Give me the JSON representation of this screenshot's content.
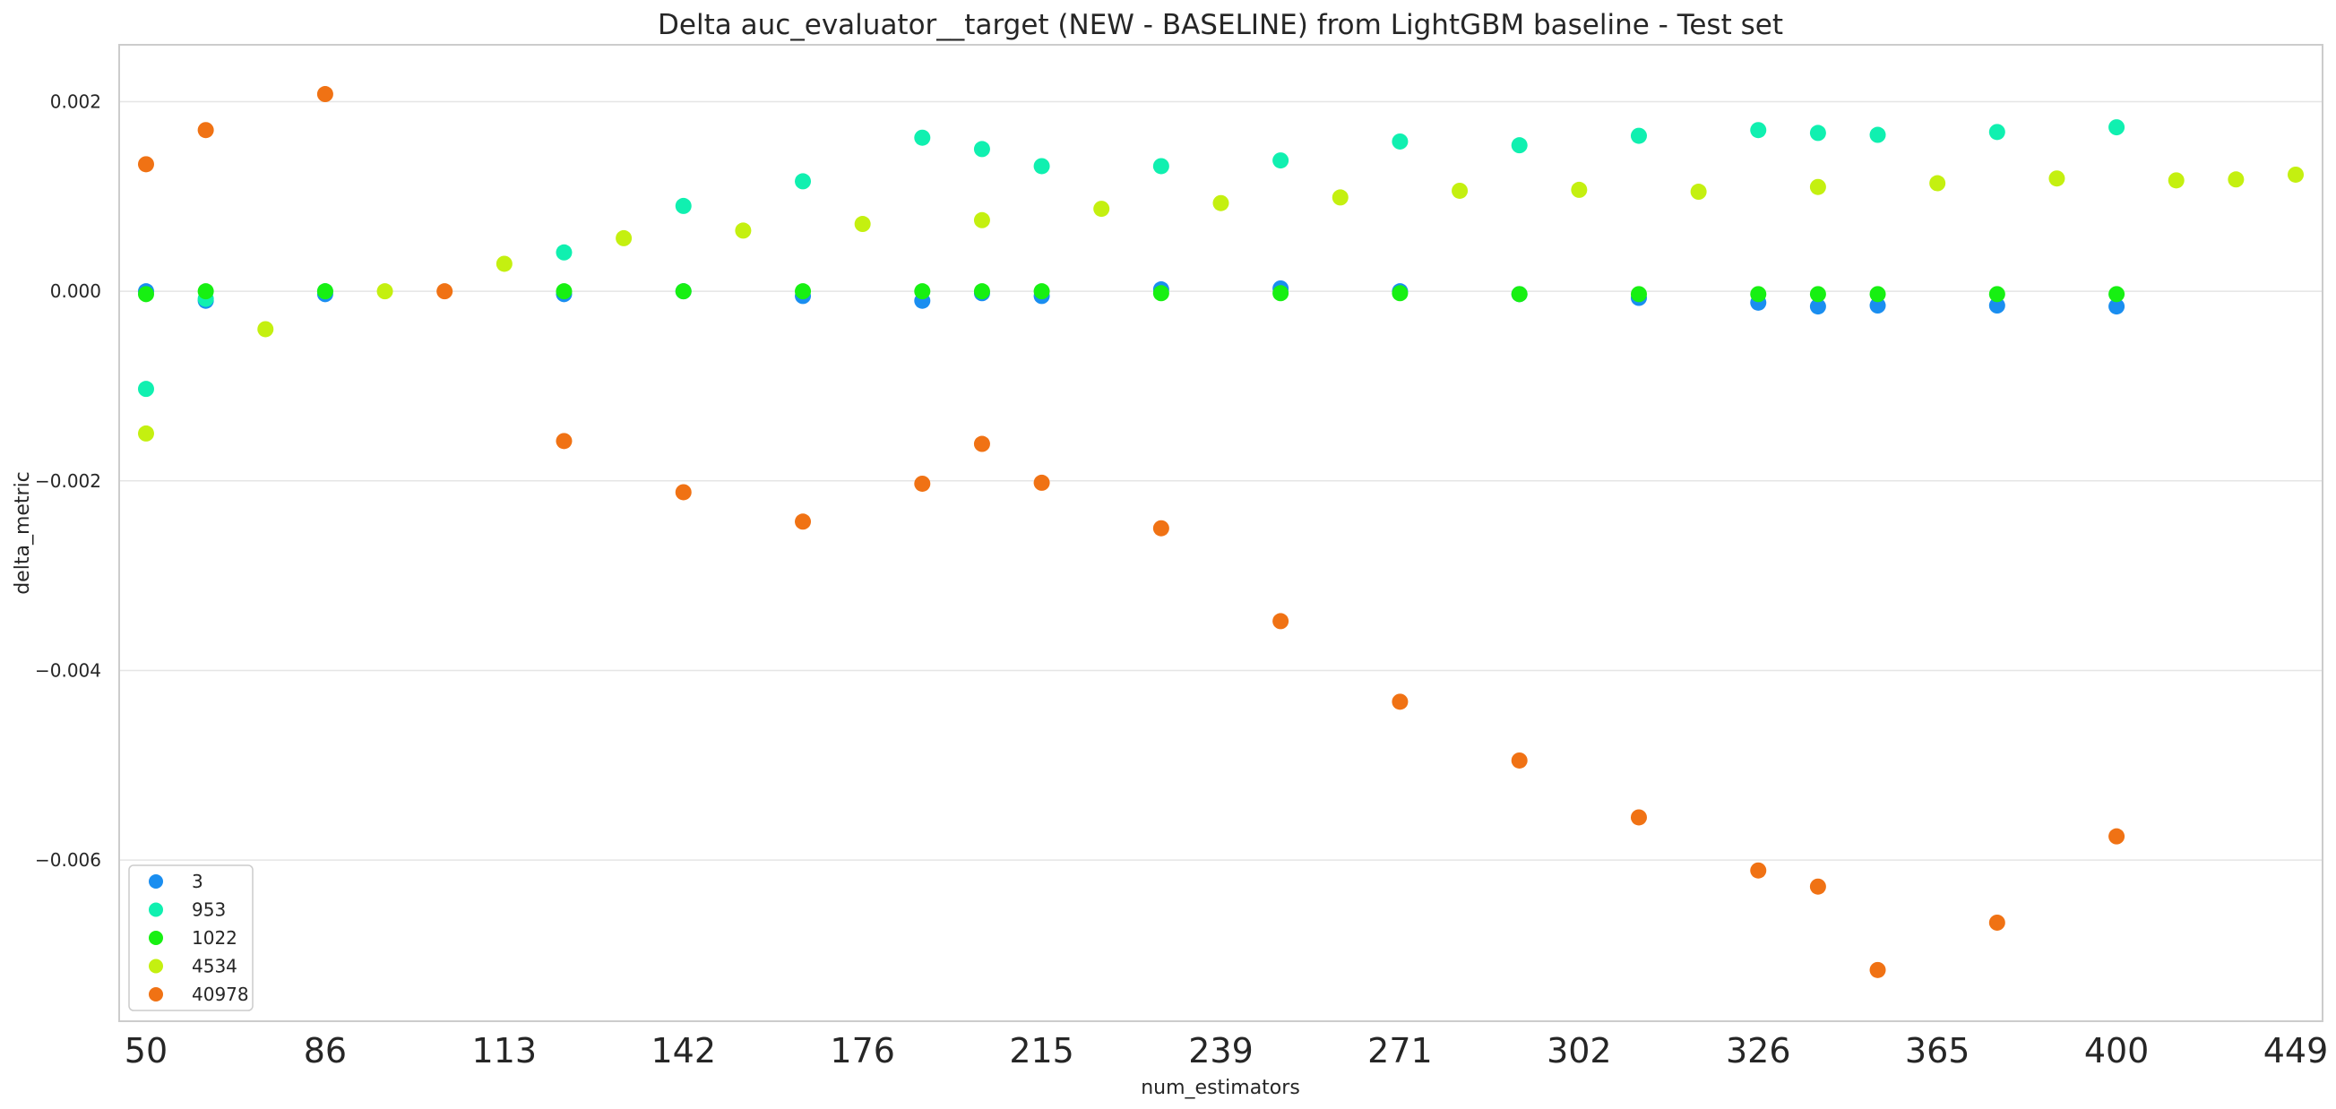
{
  "chart_data": {
    "type": "scatter",
    "title": "Delta auc_evaluator__target (NEW - BASELINE) from LightGBM baseline - Test set",
    "xlabel": "num_estimators",
    "ylabel": "delta_metric",
    "x_tick_labels": [
      "50",
      "86",
      "113",
      "142",
      "176",
      "215",
      "239",
      "271",
      "302",
      "326",
      "365",
      "400",
      "449"
    ],
    "y_tick_labels": [
      "0.002",
      "0.000",
      "−0.002",
      "−0.004",
      "−0.006"
    ],
    "y_tick_values": [
      0.002,
      0.0,
      -0.002,
      -0.004,
      -0.006
    ],
    "ylim": [
      -0.0077,
      0.0026
    ],
    "x_index_range": [
      -0.45,
      36.45
    ],
    "grid": "y",
    "legend_position": "lower-left",
    "series": [
      {
        "name": "3",
        "color": "#1a8ef0",
        "points": [
          [
            0,
            0.0
          ],
          [
            1,
            -0.0001
          ],
          [
            3,
            -3e-05
          ],
          [
            7,
            -3e-05
          ],
          [
            9,
            0.0
          ],
          [
            11,
            -5e-05
          ],
          [
            13,
            -0.0001
          ],
          [
            14,
            -2e-05
          ],
          [
            15,
            -5e-05
          ],
          [
            17,
            2e-05
          ],
          [
            19,
            3e-05
          ],
          [
            21,
            0.0
          ],
          [
            23,
            -3e-05
          ],
          [
            25,
            -7e-05
          ],
          [
            27,
            -0.00012
          ],
          [
            28,
            -0.00016
          ],
          [
            29,
            -0.00015
          ],
          [
            31,
            -0.00015
          ],
          [
            33,
            -0.00016
          ]
        ]
      },
      {
        "name": "953",
        "color": "#10f0b0",
        "points": [
          [
            0,
            -0.00103
          ],
          [
            1,
            -8e-05
          ],
          [
            3,
            0.0
          ],
          [
            7,
            0.00041
          ],
          [
            9,
            0.0009
          ],
          [
            11,
            0.00116
          ],
          [
            13,
            0.00162
          ],
          [
            14,
            0.0015
          ],
          [
            15,
            0.00132
          ],
          [
            17,
            0.00132
          ],
          [
            19,
            0.00138
          ],
          [
            21,
            0.00158
          ],
          [
            23,
            0.00154
          ],
          [
            25,
            0.00164
          ],
          [
            27,
            0.0017
          ],
          [
            28,
            0.00167
          ],
          [
            29,
            0.00165
          ],
          [
            31,
            0.00168
          ],
          [
            33,
            0.00173
          ]
        ]
      },
      {
        "name": "1022",
        "color": "#17f012",
        "points": [
          [
            0,
            -3e-05
          ],
          [
            1,
            0.0
          ],
          [
            3,
            0.0
          ],
          [
            7,
            0.0
          ],
          [
            9,
            0.0
          ],
          [
            11,
            0.0
          ],
          [
            13,
            0.0
          ],
          [
            14,
            0.0
          ],
          [
            15,
            0.0
          ],
          [
            17,
            -2e-05
          ],
          [
            19,
            -2e-05
          ],
          [
            21,
            -2e-05
          ],
          [
            23,
            -3e-05
          ],
          [
            25,
            -3e-05
          ],
          [
            27,
            -3e-05
          ],
          [
            28,
            -3e-05
          ],
          [
            29,
            -3e-05
          ],
          [
            31,
            -3e-05
          ],
          [
            33,
            -3e-05
          ]
        ]
      },
      {
        "name": "4534",
        "color": "#c4f010",
        "points": [
          [
            0,
            -0.0015
          ],
          [
            2,
            -0.0004
          ],
          [
            4,
            0.0
          ],
          [
            6,
            0.00029
          ],
          [
            8,
            0.00056
          ],
          [
            10,
            0.00064
          ],
          [
            12,
            0.00071
          ],
          [
            14,
            0.00075
          ],
          [
            16,
            0.00087
          ],
          [
            18,
            0.00093
          ],
          [
            20,
            0.00099
          ],
          [
            22,
            0.00106
          ],
          [
            24,
            0.00107
          ],
          [
            26,
            0.00105
          ],
          [
            28,
            0.0011
          ],
          [
            30,
            0.00114
          ],
          [
            32,
            0.00119
          ],
          [
            34,
            0.00117
          ],
          [
            35,
            0.00118
          ],
          [
            36,
            0.00123
          ]
        ]
      },
      {
        "name": "40978",
        "color": "#f07214",
        "points": [
          [
            0,
            0.00134
          ],
          [
            1,
            0.0017
          ],
          [
            3,
            0.00208
          ],
          [
            5,
            0.0
          ],
          [
            7,
            -0.00158
          ],
          [
            9,
            -0.00212
          ],
          [
            11,
            -0.00243
          ],
          [
            13,
            -0.00203
          ],
          [
            14,
            -0.00161
          ],
          [
            15,
            -0.00202
          ],
          [
            17,
            -0.0025
          ],
          [
            19,
            -0.00348
          ],
          [
            21,
            -0.00433
          ],
          [
            23,
            -0.00495
          ],
          [
            25,
            -0.00555
          ],
          [
            27,
            -0.00611
          ],
          [
            28,
            -0.00628
          ],
          [
            29,
            -0.00716
          ],
          [
            31,
            -0.00666
          ],
          [
            33,
            -0.00575
          ]
        ]
      }
    ]
  }
}
